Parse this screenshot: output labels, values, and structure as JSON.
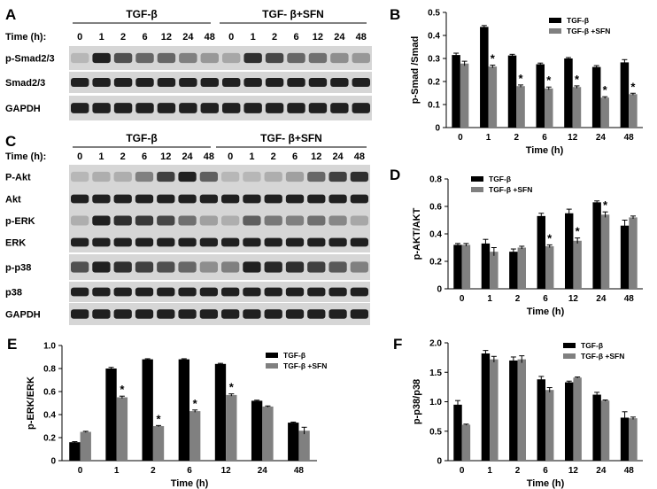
{
  "blots": {
    "A": {
      "panel_label": "A",
      "time_label": "Time (h):",
      "groups": [
        "TGF-β",
        "TGF- β+SFN"
      ],
      "timepoints": [
        "0",
        "1",
        "2",
        "6",
        "12",
        "24",
        "48",
        "0",
        "1",
        "2",
        "6",
        "12",
        "24",
        "48"
      ],
      "rows": [
        "p-Smad2/3",
        "Smad2/3",
        "GAPDH"
      ]
    },
    "C": {
      "panel_label": "C",
      "time_label": "Time (h):",
      "groups": [
        "TGF-β",
        "TGF- β+SFN"
      ],
      "timepoints": [
        "0",
        "1",
        "2",
        "6",
        "12",
        "24",
        "48",
        "0",
        "1",
        "2",
        "6",
        "12",
        "24",
        "48"
      ],
      "rows": [
        "P-Akt",
        "Akt",
        "p-ERK",
        "ERK",
        "p-p38",
        "p38",
        "GAPDH"
      ]
    }
  },
  "colors": {
    "tgf": "#000000",
    "tgf_sfn": "#808080",
    "blot_bg": "#d6d6d6",
    "band": "#1a1a1a"
  },
  "chart_data": [
    {
      "panel_label": "B",
      "type": "bar",
      "categories": [
        "0",
        "1",
        "2",
        "6",
        "12",
        "24",
        "48"
      ],
      "series": [
        {
          "name": "TGF-β",
          "values": [
            0.315,
            0.437,
            0.313,
            0.275,
            0.3,
            0.263,
            0.283
          ],
          "errors": [
            0.008,
            0.006,
            0.005,
            0.005,
            0.004,
            0.006,
            0.012
          ]
        },
        {
          "name": "TGF-β +SFN",
          "values": [
            0.278,
            0.265,
            0.18,
            0.17,
            0.176,
            0.13,
            0.145
          ],
          "errors": [
            0.01,
            0.006,
            0.005,
            0.006,
            0.005,
            0.004,
            0.004
          ]
        }
      ],
      "significant": [
        false,
        true,
        true,
        true,
        true,
        true,
        true
      ],
      "star": "*",
      "xlabel": "Time (h)",
      "ylabel": "p-Smad /Smad",
      "ylim": [
        0,
        0.5
      ],
      "yticks": [
        "0",
        "0.1",
        "0.2",
        "0.3",
        "0.4",
        "0.5"
      ],
      "legend": "top-right"
    },
    {
      "panel_label": "D",
      "type": "bar",
      "categories": [
        "0",
        "1",
        "2",
        "6",
        "12",
        "24",
        "48"
      ],
      "series": [
        {
          "name": "TGF-β",
          "values": [
            0.32,
            0.33,
            0.27,
            0.53,
            0.55,
            0.63,
            0.46
          ],
          "errors": [
            0.01,
            0.03,
            0.02,
            0.02,
            0.03,
            0.01,
            0.04
          ]
        },
        {
          "name": "TGF-β +SFN",
          "values": [
            0.32,
            0.27,
            0.3,
            0.31,
            0.35,
            0.54,
            0.52
          ],
          "errors": [
            0.01,
            0.03,
            0.01,
            0.01,
            0.02,
            0.02,
            0.01
          ]
        }
      ],
      "significant": [
        false,
        false,
        false,
        true,
        true,
        true,
        false
      ],
      "star": "*",
      "xlabel": "Time (h)",
      "ylabel": "p-AKT/AKT",
      "ylim": [
        0,
        0.8
      ],
      "yticks": [
        "0",
        "0.2",
        "0.4",
        "0.6",
        "0.8"
      ],
      "legend": "top-left"
    },
    {
      "panel_label": "E",
      "type": "bar",
      "categories": [
        "0",
        "1",
        "2",
        "6",
        "12",
        "24",
        "48"
      ],
      "series": [
        {
          "name": "TGF-β",
          "values": [
            0.16,
            0.8,
            0.88,
            0.88,
            0.84,
            0.52,
            0.33
          ],
          "errors": [
            0.005,
            0.01,
            0.005,
            0.005,
            0.005,
            0.005,
            0.005
          ]
        },
        {
          "name": "TGF-β +SFN",
          "values": [
            0.25,
            0.55,
            0.3,
            0.43,
            0.57,
            0.47,
            0.26
          ],
          "errors": [
            0.005,
            0.01,
            0.005,
            0.01,
            0.01,
            0.005,
            0.03
          ]
        }
      ],
      "significant": [
        false,
        true,
        true,
        true,
        true,
        false,
        false
      ],
      "star": "*",
      "xlabel": "Time (h)",
      "ylabel": "p-ERK/ERK",
      "ylim": [
        0,
        1.0
      ],
      "yticks": [
        "0",
        "0.2",
        "0.4",
        "0.6",
        "0.8",
        "1.0"
      ],
      "legend": "top-right"
    },
    {
      "panel_label": "F",
      "type": "bar",
      "categories": [
        "0",
        "1",
        "2",
        "6",
        "12",
        "24",
        "48"
      ],
      "series": [
        {
          "name": "TGF-β",
          "values": [
            0.95,
            1.82,
            1.7,
            1.38,
            1.33,
            1.12,
            0.73
          ],
          "errors": [
            0.07,
            0.05,
            0.06,
            0.05,
            0.02,
            0.04,
            0.1
          ]
        },
        {
          "name": "TGF-β +SFN",
          "values": [
            0.61,
            1.72,
            1.72,
            1.2,
            1.41,
            1.02,
            0.72
          ],
          "errors": [
            0.01,
            0.05,
            0.06,
            0.04,
            0.01,
            0.01,
            0.02
          ]
        }
      ],
      "significant": [
        false,
        false,
        false,
        false,
        false,
        false,
        false
      ],
      "star": "*",
      "xlabel": "Time (h)",
      "ylabel": "p-p38/p38",
      "ylim": [
        0,
        2.0
      ],
      "yticks": [
        "0",
        "0.5",
        "1.0",
        "1.5",
        "2.0"
      ],
      "legend": "top-right"
    }
  ]
}
